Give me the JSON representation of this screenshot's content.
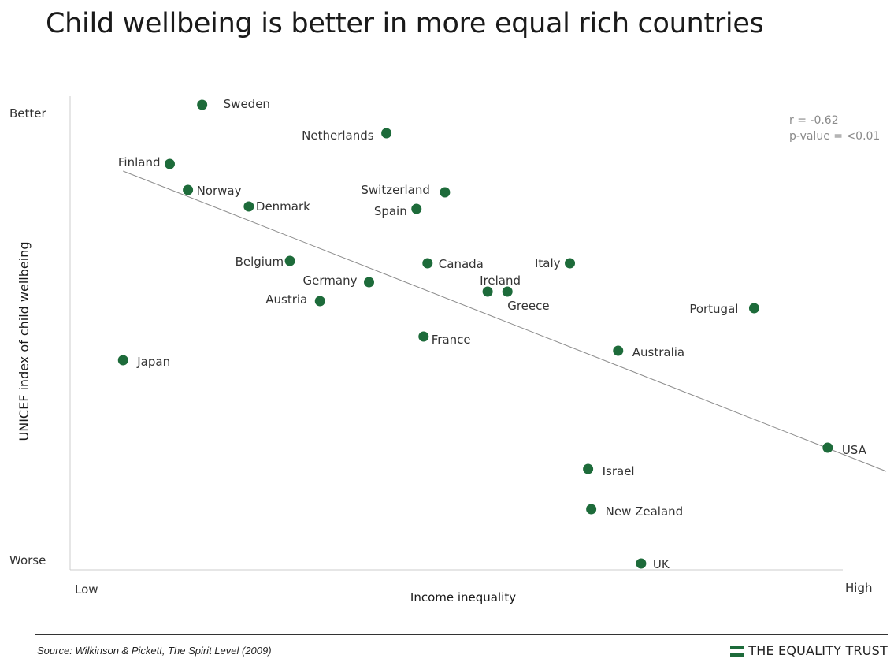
{
  "title": "Child wellbeing is better in more equal rich countries",
  "source": "Source: Wilkinson & Pickett, The Spirit Level (2009)",
  "brand": "THE EQUALITY TRUST",
  "colors": {
    "point": "#1d6b3a",
    "trend": "#8c8c8c",
    "brand": "#1d6b3a",
    "axis": "#cccccc"
  },
  "chart_data": {
    "type": "scatter",
    "title": "Child wellbeing is better in more equal rich countries",
    "xlabel": "Income inequality",
    "ylabel": "UNICEF index of child wellbeing",
    "x_tick_labels": [
      "Low",
      "High"
    ],
    "y_tick_labels": [
      "Better",
      "Worse"
    ],
    "xlim": [
      0,
      100
    ],
    "ylim": [
      0,
      100
    ],
    "grid": false,
    "stats": [
      "r = -0.62",
      "p-value = <0.01"
    ],
    "trendline": {
      "x": [
        6.5,
        103.0
      ],
      "y": [
        83.5,
        20.0
      ]
    },
    "points": [
      {
        "label": "Sweden",
        "x": 16.5,
        "y": 97.5
      },
      {
        "label": "Netherlands",
        "x": 39.8,
        "y": 91.5
      },
      {
        "label": "Finland",
        "x": 12.4,
        "y": 85.0
      },
      {
        "label": "Norway",
        "x": 14.7,
        "y": 79.5
      },
      {
        "label": "Denmark",
        "x": 22.4,
        "y": 76.0
      },
      {
        "label": "Switzerland",
        "x": 47.2,
        "y": 79.0
      },
      {
        "label": "Spain",
        "x": 43.6,
        "y": 75.5
      },
      {
        "label": "Belgium",
        "x": 27.6,
        "y": 64.5
      },
      {
        "label": "Germany",
        "x": 37.6,
        "y": 60.0
      },
      {
        "label": "Austria",
        "x": 31.4,
        "y": 56.0
      },
      {
        "label": "Canada",
        "x": 45.0,
        "y": 64.0
      },
      {
        "label": "Italy",
        "x": 63.0,
        "y": 64.0
      },
      {
        "label": "Ireland",
        "x": 52.6,
        "y": 58.0
      },
      {
        "label": "Greece",
        "x": 55.1,
        "y": 58.0
      },
      {
        "label": "Portugal",
        "x": 86.3,
        "y": 54.5
      },
      {
        "label": "France",
        "x": 44.5,
        "y": 48.5
      },
      {
        "label": "Australia",
        "x": 69.1,
        "y": 45.5
      },
      {
        "label": "Japan",
        "x": 6.5,
        "y": 43.5
      },
      {
        "label": "USA",
        "x": 95.6,
        "y": 25.0
      },
      {
        "label": "Israel",
        "x": 65.3,
        "y": 20.5
      },
      {
        "label": "New Zealand",
        "x": 65.7,
        "y": 12.0
      },
      {
        "label": "UK",
        "x": 72.0,
        "y": 0.5
      }
    ]
  }
}
